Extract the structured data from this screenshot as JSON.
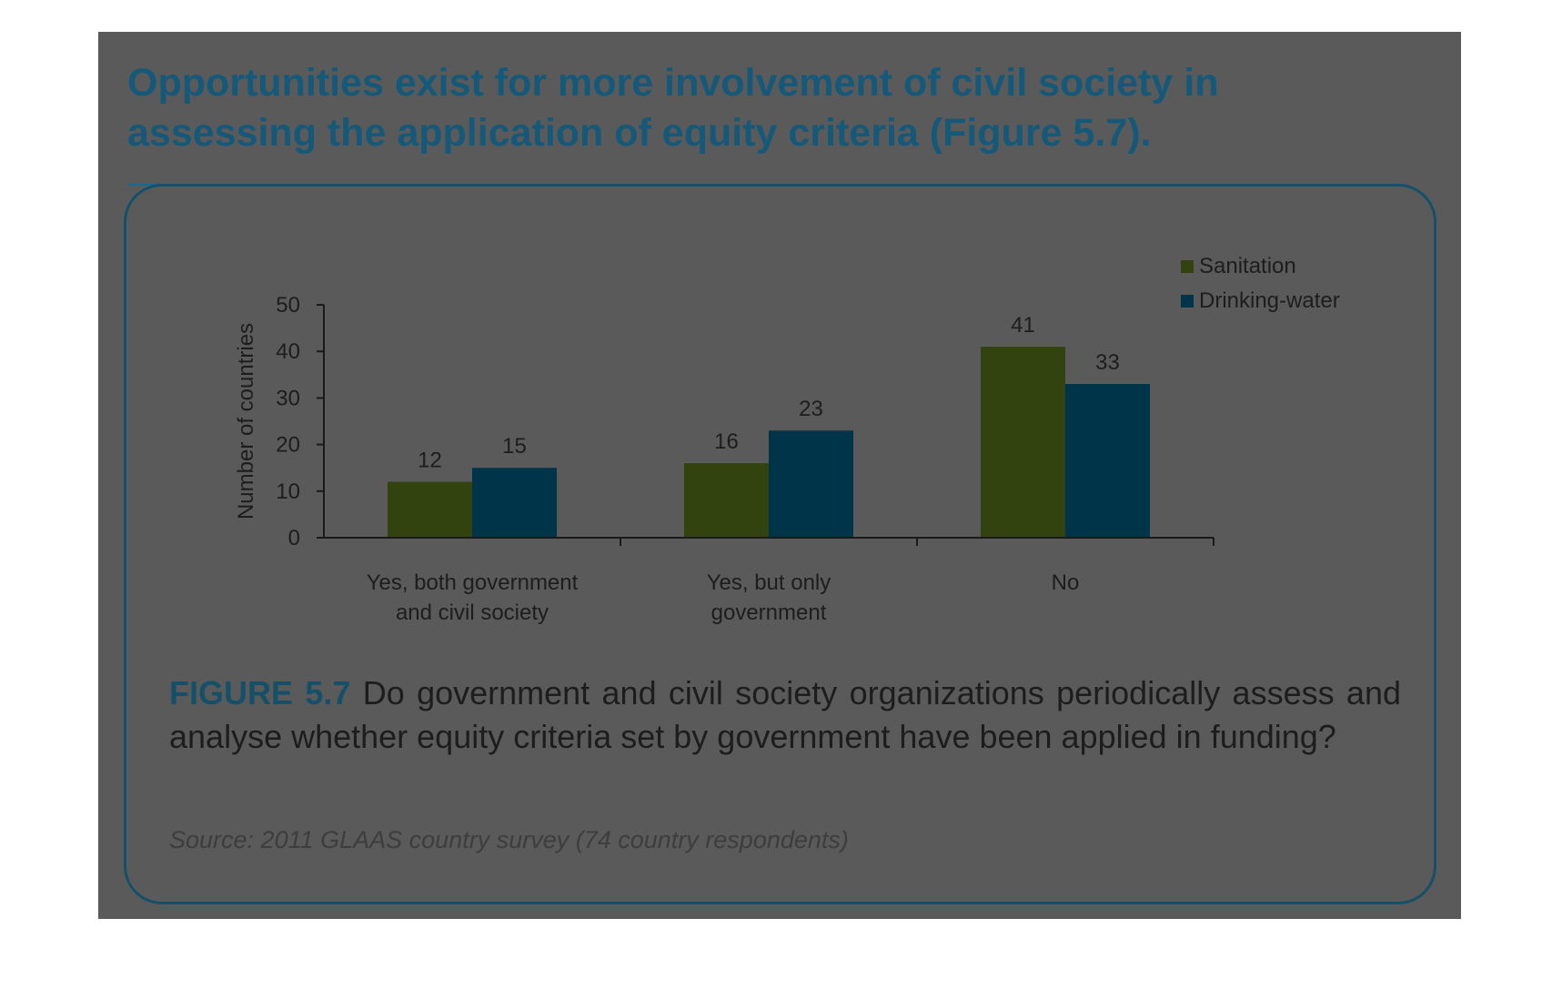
{
  "headline": "Opportunities exist for more involvement of civil society in assessing the application of equity criteria (Figure 5.7).",
  "caption": {
    "label": "FIGURE 5.7",
    "text": "Do government and civil society organizations periodically assess and analyse whether equity criteria set by government have been applied in funding?"
  },
  "source": "Source: 2011 GLAAS country survey (74 country respondents)",
  "colors": {
    "panel": "#5a5a5a",
    "headline": "#14597a",
    "sanitation": "#33430f",
    "drinking_water": "#003549",
    "text": "#1d1d1d"
  },
  "chart_data": {
    "type": "bar",
    "categories": [
      [
        "Yes, both government",
        "and civil society"
      ],
      [
        "Yes, but only",
        "government"
      ],
      [
        "No"
      ]
    ],
    "series": [
      {
        "name": "Sanitation",
        "values": [
          12,
          16,
          41
        ]
      },
      {
        "name": "Drinking-water",
        "values": [
          15,
          23,
          33
        ]
      }
    ],
    "ylabel": "Number of countries",
    "ylim": [
      0,
      50
    ],
    "yticks": [
      0,
      10,
      20,
      30,
      40,
      50
    ],
    "legend": "top-right",
    "grid": false
  }
}
